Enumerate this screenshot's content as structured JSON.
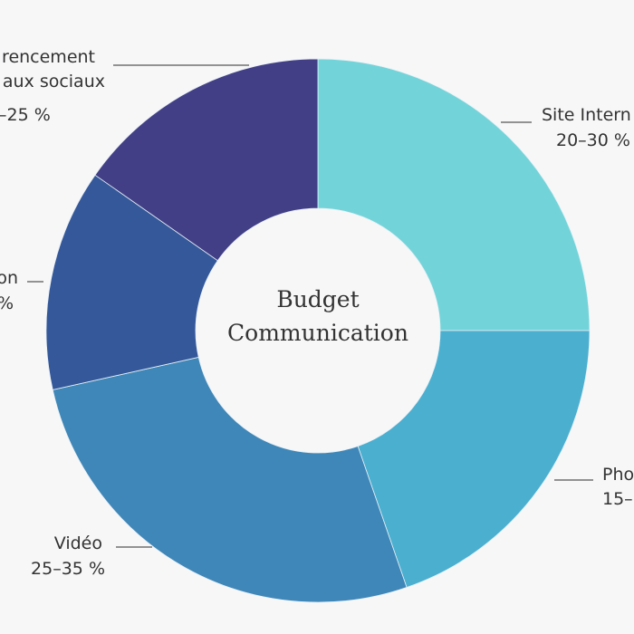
{
  "chart_data": {
    "type": "pie",
    "donut": true,
    "center_title": [
      "Budget",
      "Communication"
    ],
    "slices": [
      {
        "label_lines": [
          "Site Intern",
          "20–30 %"
        ],
        "value": 25.0,
        "color": "#72d4d9"
      },
      {
        "label_lines": [
          "Pho",
          "15–"
        ],
        "value": 19.7,
        "color": "#4bafd0"
      },
      {
        "label_lines": [
          "Vidéo",
          "25–35 %"
        ],
        "value": 26.8,
        "color": "#3f87b8"
      },
      {
        "label_lines": [
          "on",
          "%"
        ],
        "value": 13.2,
        "color": "#35589a"
      },
      {
        "label_lines": [
          "rencement",
          "aux sociaux",
          "–25 %"
        ],
        "value": 15.3,
        "color": "#433f87"
      }
    ],
    "background": "#f7f7f8"
  }
}
